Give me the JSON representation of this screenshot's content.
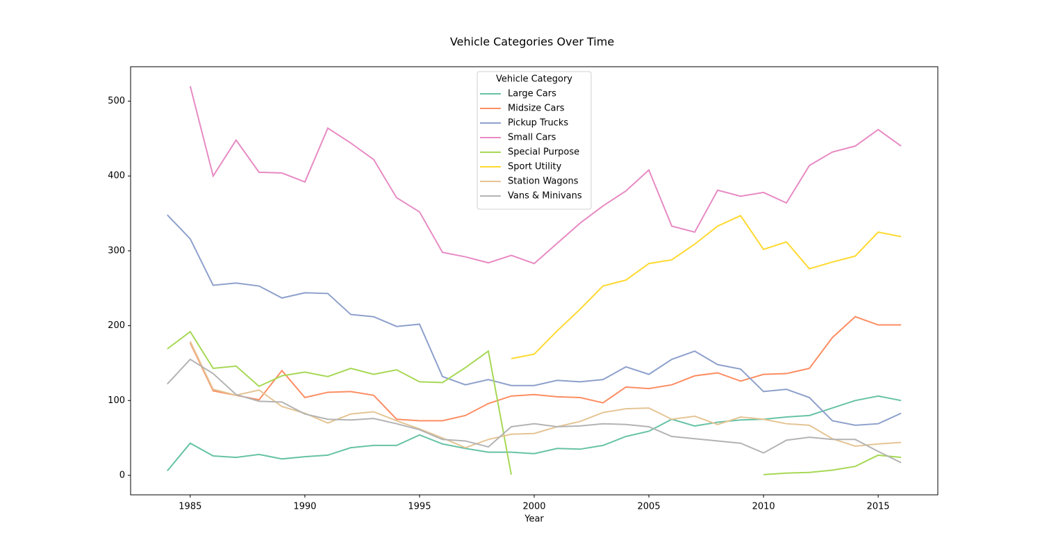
{
  "chart_data": {
    "type": "line",
    "title": "Vehicle Categories Over Time",
    "x_label": "Year",
    "x": [
      1984,
      1985,
      1986,
      1987,
      1988,
      1989,
      1990,
      1991,
      1992,
      1993,
      1994,
      1995,
      1996,
      1997,
      1998,
      1999,
      2000,
      2001,
      2002,
      2003,
      2004,
      2005,
      2006,
      2007,
      2008,
      2009,
      2010,
      2011,
      2012,
      2013,
      2014,
      2015,
      2016
    ],
    "xlim": [
      1982.4,
      2017.6
    ],
    "xticks": [
      1985,
      1990,
      1995,
      2000,
      2005,
      2010,
      2015
    ],
    "ylim": [
      -26,
      546
    ],
    "yticks": [
      0,
      100,
      200,
      300,
      400,
      500
    ],
    "legend_title": "Vehicle Category",
    "legend_position": "upper center",
    "series": [
      {
        "name": "Large Cars",
        "color": "#66c2a5",
        "values": [
          6,
          43,
          26,
          24,
          28,
          22,
          25,
          27,
          37,
          40,
          40,
          54,
          42,
          36,
          31,
          31,
          29,
          36,
          35,
          40,
          52,
          59,
          75,
          66,
          71,
          74,
          75,
          78,
          80,
          90,
          100,
          106,
          100
        ]
      },
      {
        "name": "Midsize Cars",
        "color": "#fc8d62",
        "values": [
          null,
          177,
          113,
          107,
          101,
          140,
          104,
          111,
          112,
          107,
          75,
          73,
          73,
          80,
          96,
          106,
          108,
          105,
          104,
          97,
          118,
          116,
          121,
          133,
          137,
          126,
          135,
          136,
          143,
          184,
          212,
          201,
          201
        ]
      },
      {
        "name": "Pickup Trucks",
        "color": "#8da0cb",
        "values": [
          348,
          316,
          254,
          257,
          253,
          237,
          244,
          243,
          215,
          212,
          199,
          202,
          132,
          121,
          128,
          120,
          120,
          127,
          125,
          128,
          145,
          135,
          155,
          166,
          148,
          142,
          112,
          115,
          104,
          73,
          67,
          69,
          83
        ]
      },
      {
        "name": "Small Cars",
        "color": "#e78ac3",
        "values": [
          null,
          520,
          400,
          448,
          405,
          404,
          392,
          464,
          444,
          422,
          371,
          352,
          298,
          292,
          284,
          294,
          283,
          310,
          337,
          360,
          380,
          408,
          333,
          325,
          381,
          373,
          378,
          364,
          414,
          432,
          440,
          462,
          440
        ]
      },
      {
        "name": "Special Purpose",
        "color": "#a6d854",
        "values": [
          169,
          192,
          143,
          146,
          119,
          133,
          138,
          132,
          143,
          135,
          141,
          125,
          124,
          144,
          166,
          1,
          null,
          null,
          null,
          null,
          null,
          null,
          null,
          null,
          null,
          null,
          1,
          3,
          4,
          7,
          12,
          27,
          24
        ]
      },
      {
        "name": "Sport Utility",
        "color": "#ffd92f",
        "values": [
          null,
          null,
          null,
          null,
          null,
          null,
          null,
          null,
          null,
          null,
          null,
          null,
          null,
          null,
          null,
          156,
          162,
          193,
          222,
          253,
          261,
          283,
          288,
          309,
          333,
          347,
          302,
          312,
          276,
          285,
          293,
          325,
          319
        ]
      },
      {
        "name": "Station Wagons",
        "color": "#e5c494",
        "values": [
          null,
          179,
          115,
          107,
          114,
          92,
          83,
          70,
          82,
          85,
          73,
          62,
          50,
          37,
          48,
          55,
          56,
          65,
          72,
          84,
          89,
          90,
          75,
          79,
          68,
          78,
          75,
          69,
          67,
          49,
          39,
          42,
          44
        ]
      },
      {
        "name": "Vans & Minivans",
        "color": "#b3b3b3",
        "values": [
          122,
          155,
          136,
          108,
          99,
          98,
          82,
          75,
          74,
          76,
          69,
          61,
          48,
          46,
          38,
          65,
          69,
          65,
          66,
          69,
          68,
          65,
          52,
          49,
          46,
          43,
          30,
          47,
          51,
          48,
          48,
          32,
          17
        ]
      }
    ]
  }
}
